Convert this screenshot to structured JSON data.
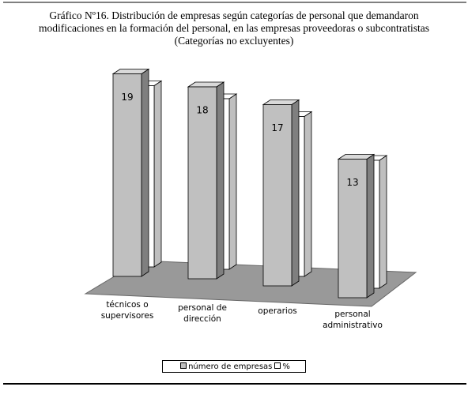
{
  "chart_data": {
    "type": "bar3d",
    "title": "Gráfico Nº16. Distribución de empresas según categorías de personal que demandaron modificaciones en la formación del personal, en las empresas proveedoras o subcontratistas (Categorías no excluyentes)",
    "categories": [
      "técnicos o supervisores",
      "personal de dirección",
      "operarios",
      "personal administrativo"
    ],
    "series": [
      {
        "name": "número de empresas",
        "color": "#c0c0c0",
        "values": [
          19,
          18,
          17,
          13
        ]
      },
      {
        "name": "%",
        "color": "#ffffff",
        "values": [
          17,
          16,
          15,
          12
        ]
      }
    ],
    "legend": "bottom"
  }
}
